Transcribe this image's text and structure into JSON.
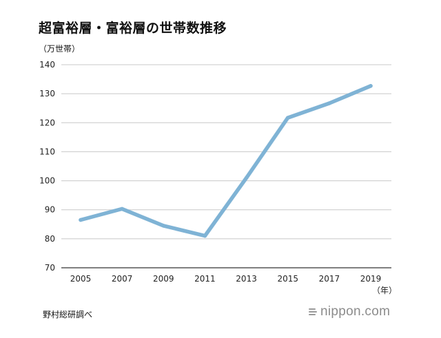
{
  "title": "超富裕層・富裕層の世帯数推移",
  "source": "野村総研調べ",
  "brand": "nippon.com",
  "chart_data": {
    "type": "line",
    "title": "超富裕層・富裕層の世帯数推移",
    "ylabel": "（万世帯）",
    "xlabel": "（年）",
    "categories": [
      "2005",
      "2007",
      "2009",
      "2011",
      "2013",
      "2015",
      "2017",
      "2019"
    ],
    "series": [
      {
        "values": [
          86.5,
          90.3,
          84.5,
          81.0,
          101.0,
          121.7,
          126.7,
          132.7
        ]
      }
    ],
    "ylim": [
      70,
      140
    ],
    "yticks": [
      70,
      80,
      90,
      100,
      110,
      120,
      130,
      140
    ],
    "grid": true,
    "line_color": "#7fb3d5",
    "grid_color": "#c8c8c8",
    "axis_color": "#333333"
  }
}
